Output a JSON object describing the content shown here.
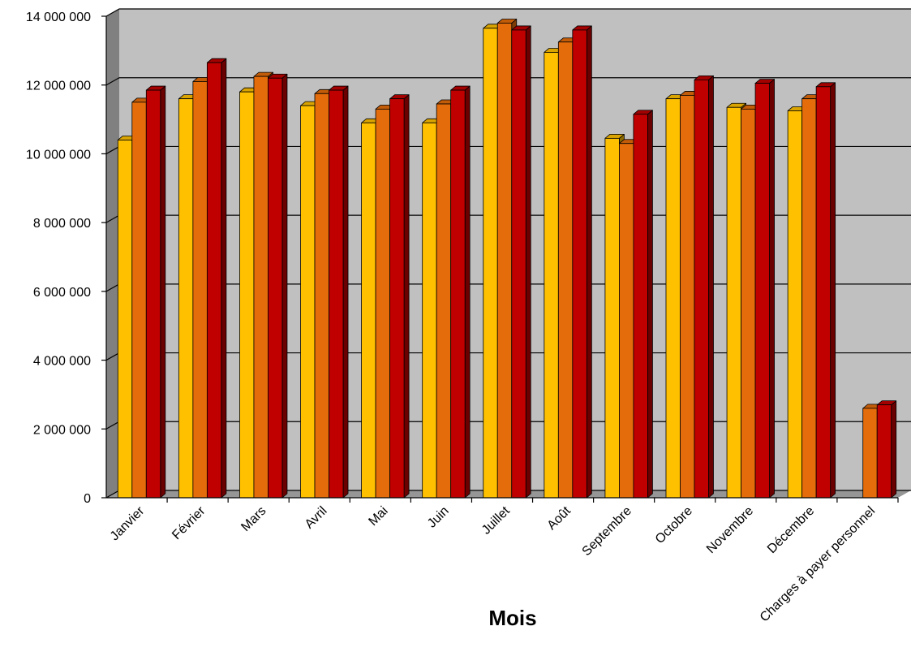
{
  "chart_data": {
    "type": "bar",
    "title": "",
    "xlabel": "Mois",
    "ylabel": "",
    "ylim": [
      0,
      14000000
    ],
    "yticks": [
      0,
      2000000,
      4000000,
      6000000,
      8000000,
      10000000,
      12000000,
      14000000
    ],
    "ytick_labels": [
      "0",
      "2 000 000",
      "4 000 000",
      "6 000 000",
      "8 000 000",
      "10 000 000",
      "12 000 000",
      "14 000 000"
    ],
    "grid": true,
    "legend": "none",
    "style": "3d-clustered-column",
    "categories": [
      "Janvier",
      "Février",
      "Mars",
      "Avril",
      "Mai",
      "Juin",
      "Juillet",
      "Août",
      "Septembre",
      "Octobre",
      "Novembre",
      "Décembre",
      "Charges à payer personnel"
    ],
    "series": [
      {
        "color": "#ffc000",
        "values": [
          10400000,
          11600000,
          11800000,
          11400000,
          10900000,
          10900000,
          13650000,
          12950000,
          10450000,
          11600000,
          11350000,
          11250000,
          null
        ]
      },
      {
        "color": "#e46c0a",
        "values": [
          11500000,
          12100000,
          12250000,
          11750000,
          11300000,
          11450000,
          13800000,
          13250000,
          10300000,
          11700000,
          11300000,
          11600000,
          2600000
        ]
      },
      {
        "color": "#c00000",
        "values": [
          11850000,
          12650000,
          12200000,
          11850000,
          11600000,
          11850000,
          13600000,
          13600000,
          11150000,
          12150000,
          12050000,
          11950000,
          2700000
        ]
      }
    ],
    "colors": {
      "wall": "#c0c0c0",
      "side_wall": "#808080",
      "floor": "#969696",
      "grid": "#000000"
    }
  }
}
